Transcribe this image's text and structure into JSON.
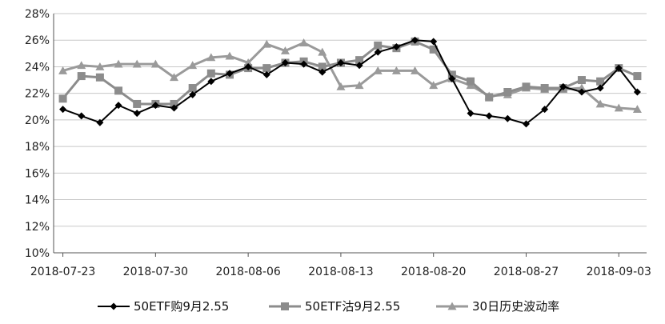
{
  "chart_data": {
    "type": "line",
    "title": "",
    "xlabel": "",
    "ylabel": "",
    "ylim": [
      10,
      28
    ],
    "y_ticks": [
      "10%",
      "12%",
      "14%",
      "16%",
      "18%",
      "20%",
      "22%",
      "24%",
      "26%",
      "28%"
    ],
    "x_tick_labels": [
      "2018-07-23",
      "2018-07-30",
      "2018-08-06",
      "2018-08-13",
      "2018-08-20",
      "2018-08-27",
      "2018-09-03"
    ],
    "grid": "horizontal",
    "legend_position": "bottom",
    "x": [
      "2018-07-23",
      "2018-07-24",
      "2018-07-25",
      "2018-07-26",
      "2018-07-27",
      "2018-07-30",
      "2018-07-31",
      "2018-08-01",
      "2018-08-02",
      "2018-08-03",
      "2018-08-06",
      "2018-08-07",
      "2018-08-08",
      "2018-08-09",
      "2018-08-10",
      "2018-08-13",
      "2018-08-14",
      "2018-08-15",
      "2018-08-16",
      "2018-08-17",
      "2018-08-20",
      "2018-08-21",
      "2018-08-22",
      "2018-08-23",
      "2018-08-24",
      "2018-08-27",
      "2018-08-28",
      "2018-08-29",
      "2018-08-30",
      "2018-08-31",
      "2018-09-03",
      "2018-09-04"
    ],
    "series": [
      {
        "name": "50ETF购9月2.55",
        "color": "#000000",
        "marker": "diamond",
        "values": [
          20.8,
          20.3,
          19.8,
          21.1,
          20.5,
          21.1,
          20.9,
          21.9,
          22.9,
          23.5,
          24.0,
          23.4,
          24.3,
          24.2,
          23.6,
          24.3,
          24.1,
          25.1,
          25.5,
          26.0,
          25.9,
          23.1,
          20.5,
          20.3,
          20.1,
          19.7,
          20.8,
          22.5,
          22.1,
          22.4,
          23.9,
          22.1
        ]
      },
      {
        "name": "50ETF沽9月2.55",
        "color": "#8c8c8c",
        "marker": "square",
        "values": [
          21.6,
          23.3,
          23.2,
          22.2,
          21.2,
          21.2,
          21.2,
          22.4,
          23.5,
          23.4,
          23.9,
          23.9,
          24.3,
          24.4,
          24.0,
          24.3,
          24.5,
          25.6,
          25.4,
          25.9,
          25.3,
          23.4,
          22.9,
          21.7,
          22.1,
          22.5,
          22.4,
          22.4,
          23.0,
          22.9,
          23.9,
          23.3
        ]
      },
      {
        "name": "30日历史波动率",
        "color": "#9a9a9a",
        "marker": "triangle",
        "values": [
          23.7,
          24.1,
          24.0,
          24.2,
          24.2,
          24.2,
          23.2,
          24.1,
          24.7,
          24.8,
          24.3,
          25.7,
          25.2,
          25.8,
          25.1,
          22.5,
          22.6,
          23.7,
          23.7,
          23.7,
          22.6,
          23.1,
          22.6,
          21.8,
          21.9,
          22.4,
          22.3,
          22.3,
          22.4,
          21.2,
          20.9,
          20.8
        ]
      }
    ]
  }
}
